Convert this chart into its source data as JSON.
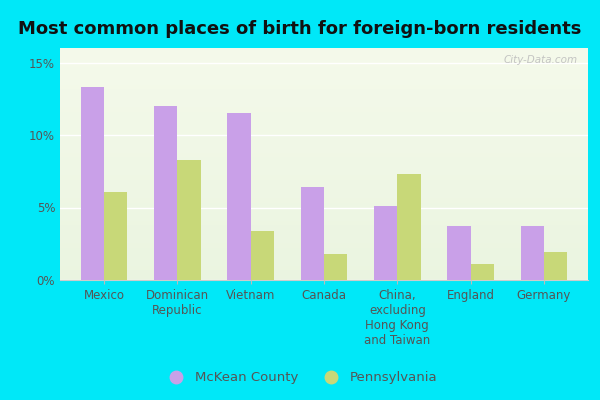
{
  "title": "Most common places of birth for foreign-born residents",
  "categories": [
    "Mexico",
    "Dominican\nRepublic",
    "Vietnam",
    "Canada",
    "China,\nexcluding\nHong Kong\nand Taiwan",
    "England",
    "Germany"
  ],
  "mckean_values": [
    13.3,
    12.0,
    11.5,
    6.4,
    5.1,
    3.7,
    3.7
  ],
  "pa_values": [
    6.1,
    8.3,
    3.4,
    1.8,
    7.3,
    1.1,
    1.9
  ],
  "mckean_color": "#c9a0e8",
  "pa_color": "#c8d878",
  "background_outer": "#00e8f8",
  "bar_width": 0.32,
  "ylim": [
    0,
    16
  ],
  "yticks": [
    0,
    5,
    10,
    15
  ],
  "ytick_labels": [
    "0%",
    "5%",
    "10%",
    "15%"
  ],
  "legend_mckean": "McKean County",
  "legend_pa": "Pennsylvania",
  "watermark": "City-Data.com",
  "title_fontsize": 13,
  "tick_fontsize": 8.5,
  "legend_fontsize": 9.5
}
